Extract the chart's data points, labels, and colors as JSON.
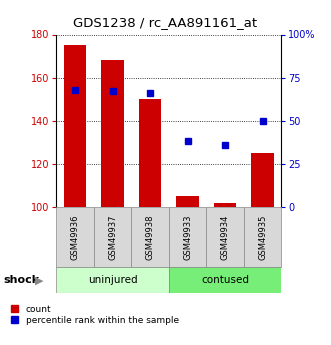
{
  "title": "GDS1238 / rc_AA891161_at",
  "samples": [
    "GSM49936",
    "GSM49937",
    "GSM49938",
    "GSM49933",
    "GSM49934",
    "GSM49935"
  ],
  "group_labels": [
    "uninjured",
    "contused"
  ],
  "count_values": [
    175,
    168,
    150,
    105,
    102,
    125
  ],
  "percentile_values": [
    68,
    67,
    66,
    38,
    36,
    50
  ],
  "count_baseline": 100,
  "ylim_left": [
    100,
    180
  ],
  "ylim_right": [
    0,
    100
  ],
  "yticks_left": [
    100,
    120,
    140,
    160,
    180
  ],
  "yticks_right": [
    0,
    25,
    50,
    75,
    100
  ],
  "ytick_labels_right": [
    "0",
    "25",
    "50",
    "75",
    "100%"
  ],
  "bar_color": "#cc0000",
  "scatter_color": "#0000cc",
  "bar_width": 0.6,
  "shock_label": "shock",
  "legend_count": "count",
  "legend_percentile": "percentile rank within the sample",
  "background_color": "#ffffff",
  "label_area_color": "#d8d8d8",
  "uninjured_color": "#ccffcc",
  "contused_color": "#77ee77"
}
